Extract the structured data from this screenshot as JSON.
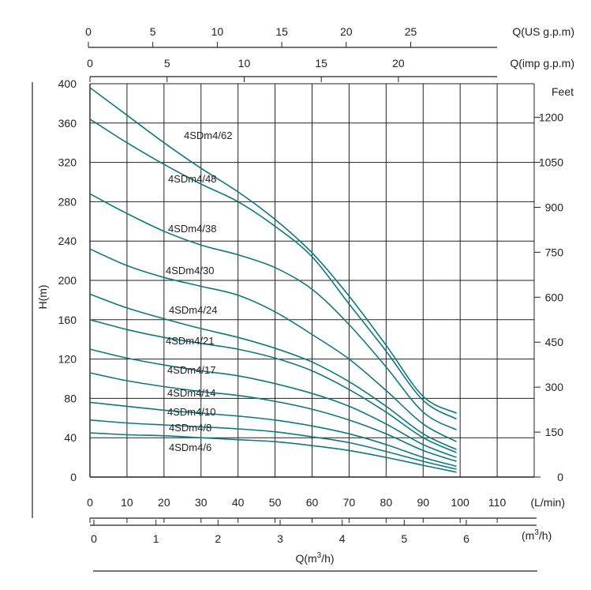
{
  "chart_data": {
    "type": "line",
    "title": "",
    "colors": {
      "curve": "#0e7880",
      "grid": "#222222"
    },
    "x_axes": [
      {
        "label": "Q(US g.p.m)",
        "range": [
          0,
          31.7
        ],
        "ticks": [
          0,
          5,
          10,
          15,
          20,
          25
        ],
        "tick_labels": [
          "0",
          "5",
          "10",
          "15",
          "20",
          "25"
        ]
      },
      {
        "label": "Q(imp g.p.m)",
        "range": [
          0,
          26.4
        ],
        "ticks": [
          0,
          5,
          10,
          15,
          20
        ],
        "tick_labels": [
          "0",
          "5",
          "10",
          "15",
          "20"
        ]
      },
      {
        "label": "(L/min)",
        "range": [
          0,
          120
        ],
        "ticks": [
          0,
          10,
          20,
          30,
          40,
          50,
          60,
          70,
          80,
          90,
          100,
          110
        ],
        "tick_labels": [
          "0",
          "10",
          "20",
          "30",
          "40",
          "50",
          "60",
          "70",
          "80",
          "90",
          "100",
          "110"
        ]
      },
      {
        "label_main": "Q(m",
        "label_sup": "3",
        "label_tail": "/h)",
        "unit_main": "(m",
        "unit_sup": "3",
        "unit_tail": "/h)",
        "range": [
          0,
          7.2
        ],
        "ticks": [
          0,
          1,
          2,
          3,
          4,
          5,
          6
        ],
        "tick_labels": [
          "0",
          "1",
          "2",
          "3",
          "4",
          "5",
          "6"
        ]
      }
    ],
    "y_axes": [
      {
        "label": "H(m)",
        "range": [
          0,
          400
        ],
        "ticks": [
          0,
          40,
          80,
          120,
          160,
          200,
          240,
          280,
          320,
          360,
          400
        ],
        "tick_labels": [
          "0",
          "40",
          "80",
          "120",
          "160",
          "200",
          "240",
          "280",
          "320",
          "360",
          "400"
        ]
      },
      {
        "label": "Feet",
        "ticks": [
          0,
          150,
          300,
          450,
          600,
          750,
          900,
          1050,
          1200
        ],
        "tick_labels": [
          "0",
          "150",
          "300",
          "450",
          "600",
          "750",
          "900",
          "1050",
          "1200"
        ]
      }
    ],
    "grid": true,
    "series": [
      {
        "name": "4SDm4/62",
        "x": [
          0,
          10,
          20,
          30,
          40,
          50,
          60,
          70,
          80,
          90,
          99
        ],
        "y": [
          396,
          368,
          340,
          314,
          290,
          262,
          228,
          184,
          134,
          82,
          65
        ]
      },
      {
        "name": "4SDm4/48",
        "x": [
          0,
          10,
          20,
          30,
          40,
          50,
          60,
          70,
          80,
          90,
          99
        ],
        "y": [
          364,
          340,
          318,
          298,
          280,
          255,
          224,
          176,
          128,
          78,
          59
        ]
      },
      {
        "name": "4SDm4/38",
        "x": [
          0,
          10,
          20,
          30,
          40,
          50,
          60,
          70,
          80,
          90,
          99
        ],
        "y": [
          288,
          268,
          250,
          236,
          226,
          213,
          191,
          155,
          112,
          66,
          48
        ]
      },
      {
        "name": "4SDm4/30",
        "x": [
          0,
          10,
          20,
          30,
          40,
          50,
          60,
          70,
          80,
          90,
          99
        ],
        "y": [
          232,
          215,
          203,
          194,
          185,
          168,
          145,
          120,
          88,
          54,
          36
        ]
      },
      {
        "name": "4SDm4/24",
        "x": [
          0,
          10,
          20,
          30,
          40,
          50,
          60,
          70,
          80,
          90,
          99
        ],
        "y": [
          186,
          172,
          161,
          151,
          142,
          131,
          117,
          97,
          72,
          44,
          28
        ]
      },
      {
        "name": "4SDm4/21",
        "x": [
          0,
          10,
          20,
          30,
          40,
          50,
          60,
          70,
          80,
          90,
          99
        ],
        "y": [
          160,
          150,
          142,
          136,
          130,
          121,
          108,
          89,
          66,
          40,
          25
        ]
      },
      {
        "name": "4SDm4/17",
        "x": [
          0,
          10,
          20,
          30,
          40,
          50,
          60,
          70,
          80,
          90,
          99
        ],
        "y": [
          130,
          121,
          114,
          108,
          103,
          95,
          85,
          72,
          54,
          33,
          20
        ]
      },
      {
        "name": "4SDm4/14",
        "x": [
          0,
          10,
          20,
          30,
          40,
          50,
          60,
          70,
          80,
          90,
          99
        ],
        "y": [
          106,
          98,
          92,
          87,
          83,
          77,
          69,
          58,
          44,
          27,
          16
        ]
      },
      {
        "name": "4SDm4/10",
        "x": [
          0,
          10,
          20,
          30,
          40,
          50,
          60,
          70,
          80,
          90,
          99
        ],
        "y": [
          76,
          72,
          68,
          65,
          62,
          58,
          52,
          44,
          33,
          20,
          11
        ]
      },
      {
        "name": "4SDm4/8",
        "x": [
          0,
          10,
          20,
          30,
          40,
          50,
          60,
          70,
          80,
          90,
          99
        ],
        "y": [
          58,
          55,
          53,
          51,
          49,
          46,
          41,
          35,
          26,
          16,
          8
        ]
      },
      {
        "name": "4SDm4/6",
        "x": [
          0,
          10,
          20,
          30,
          40,
          50,
          60,
          70,
          80,
          90,
          99
        ],
        "y": [
          45,
          43,
          42,
          40,
          38,
          36,
          32,
          27,
          20,
          12,
          5
        ]
      }
    ]
  }
}
